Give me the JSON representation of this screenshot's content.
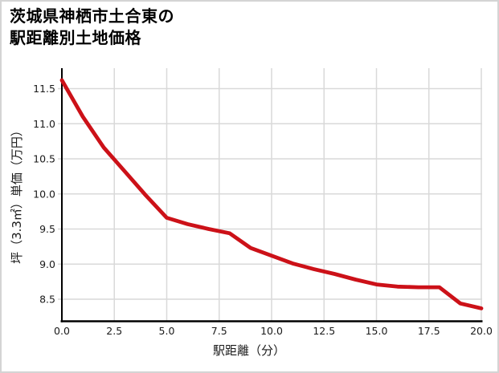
{
  "title": {
    "line1": "茨城県神栖市土合東の",
    "line2": "駅距離別土地価格"
  },
  "chart_data": {
    "type": "line",
    "title": "茨城県神栖市土合東の駅距離別土地価格",
    "xlabel": "駅距離（分）",
    "ylabel": "坪（3.3㎡）単価（万円）",
    "x": [
      0,
      1,
      2,
      3,
      4,
      5,
      6,
      7,
      8,
      9,
      10,
      11,
      12,
      13,
      14,
      15,
      16,
      17,
      18,
      19,
      20
    ],
    "values": [
      11.62,
      11.1,
      10.66,
      10.32,
      9.98,
      9.66,
      9.57,
      9.5,
      9.44,
      9.23,
      9.12,
      9.01,
      8.93,
      8.86,
      8.78,
      8.71,
      8.68,
      8.67,
      8.67,
      8.44,
      8.37
    ],
    "series_name": "坪単価（万円）",
    "xlim": [
      0,
      20
    ],
    "ylim": [
      8.19,
      11.79
    ],
    "x_ticks": {
      "values": [
        0,
        2.5,
        5,
        7.5,
        10,
        12.5,
        15,
        17.5,
        20
      ],
      "labels": [
        "0.0",
        "2.5",
        "5.0",
        "7.5",
        "10.0",
        "12.5",
        "15.0",
        "17.5",
        "20.0"
      ]
    },
    "y_ticks": {
      "values": [
        11.5,
        11.0,
        10.5,
        10.0,
        9.5,
        9.0,
        8.5
      ],
      "labels": [
        "11.5",
        "11.0",
        "10.5",
        "10.0",
        "9.5",
        "9.0",
        "8.5"
      ]
    },
    "grid": true,
    "legend": "none",
    "colors": {
      "line": "#cc1118",
      "grid": "#d9d9d9",
      "axis": "#000000",
      "text": "#1a1a1a",
      "background": "#ffffff",
      "border": "#d4d4d4"
    }
  }
}
